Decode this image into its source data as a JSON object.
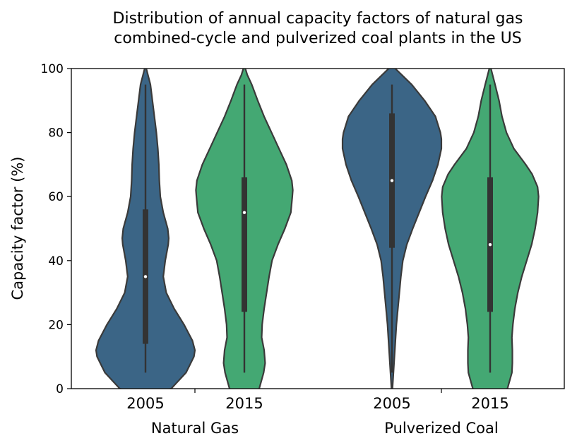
{
  "chart_data": {
    "type": "violin",
    "title_lines": [
      "Distribution of annual capacity factors of natural gas",
      "combined-cycle and pulverized coal plants in the US"
    ],
    "ylabel": "Capacity factor (%)",
    "ylim": [
      0,
      100
    ],
    "yticks": [
      "0",
      "20",
      "40",
      "60",
      "80",
      "100"
    ],
    "groups": [
      {
        "label": "Natural Gas",
        "categories": [
          "2005",
          "2015"
        ]
      },
      {
        "label": "Pulverized Coal",
        "categories": [
          "2005",
          "2015"
        ]
      }
    ],
    "colors": {
      "2005": "#3b6586",
      "2015": "#44a873"
    },
    "violins": [
      {
        "group": "Natural Gas",
        "year": "2005",
        "median": 35,
        "q1": 14,
        "q3": 56,
        "whisker_low": 5,
        "whisker_high": 95,
        "density": [
          [
            -2,
            0
          ],
          [
            0,
            0.52
          ],
          [
            5,
            0.82
          ],
          [
            10,
            0.98
          ],
          [
            12,
            1.0
          ],
          [
            15,
            0.95
          ],
          [
            20,
            0.78
          ],
          [
            25,
            0.58
          ],
          [
            30,
            0.42
          ],
          [
            35,
            0.36
          ],
          [
            40,
            0.4
          ],
          [
            45,
            0.46
          ],
          [
            47,
            0.47
          ],
          [
            50,
            0.45
          ],
          [
            55,
            0.36
          ],
          [
            60,
            0.3
          ],
          [
            65,
            0.28
          ],
          [
            70,
            0.27
          ],
          [
            75,
            0.25
          ],
          [
            80,
            0.22
          ],
          [
            85,
            0.18
          ],
          [
            90,
            0.14
          ],
          [
            95,
            0.1
          ],
          [
            98,
            0.05
          ],
          [
            101,
            0
          ]
        ]
      },
      {
        "group": "Natural Gas",
        "year": "2015",
        "median": 55,
        "q1": 24,
        "q3": 66,
        "whisker_low": 5,
        "whisker_high": 95,
        "density": [
          [
            -2,
            0
          ],
          [
            0,
            0.3
          ],
          [
            5,
            0.39
          ],
          [
            8,
            0.42
          ],
          [
            12,
            0.4
          ],
          [
            16,
            0.35
          ],
          [
            20,
            0.36
          ],
          [
            25,
            0.4
          ],
          [
            30,
            0.45
          ],
          [
            35,
            0.5
          ],
          [
            40,
            0.56
          ],
          [
            45,
            0.68
          ],
          [
            50,
            0.82
          ],
          [
            55,
            0.94
          ],
          [
            60,
            0.97
          ],
          [
            62,
            0.98
          ],
          [
            65,
            0.96
          ],
          [
            70,
            0.85
          ],
          [
            75,
            0.7
          ],
          [
            80,
            0.55
          ],
          [
            85,
            0.4
          ],
          [
            90,
            0.27
          ],
          [
            95,
            0.15
          ],
          [
            98,
            0.06
          ],
          [
            101,
            0
          ]
        ]
      },
      {
        "group": "Pulverized Coal",
        "year": "2005",
        "median": 65,
        "q1": 44,
        "q3": 86,
        "whisker_low": 5,
        "whisker_high": 95,
        "density": [
          [
            0,
            0.01
          ],
          [
            5,
            0.03
          ],
          [
            10,
            0.05
          ],
          [
            15,
            0.07
          ],
          [
            20,
            0.09
          ],
          [
            25,
            0.12
          ],
          [
            30,
            0.15
          ],
          [
            35,
            0.18
          ],
          [
            40,
            0.22
          ],
          [
            45,
            0.3
          ],
          [
            50,
            0.42
          ],
          [
            55,
            0.55
          ],
          [
            60,
            0.68
          ],
          [
            65,
            0.82
          ],
          [
            70,
            0.93
          ],
          [
            75,
            1.0
          ],
          [
            78,
            1.0
          ],
          [
            80,
            0.98
          ],
          [
            85,
            0.88
          ],
          [
            90,
            0.66
          ],
          [
            95,
            0.4
          ],
          [
            98,
            0.2
          ],
          [
            101,
            0
          ]
        ]
      },
      {
        "group": "Pulverized Coal",
        "year": "2015",
        "median": 45,
        "q1": 24,
        "q3": 66,
        "whisker_low": 5,
        "whisker_high": 95,
        "density": [
          [
            -2,
            0
          ],
          [
            0,
            0.35
          ],
          [
            5,
            0.44
          ],
          [
            8,
            0.45
          ],
          [
            12,
            0.45
          ],
          [
            16,
            0.44
          ],
          [
            20,
            0.46
          ],
          [
            25,
            0.5
          ],
          [
            30,
            0.56
          ],
          [
            35,
            0.64
          ],
          [
            40,
            0.74
          ],
          [
            45,
            0.84
          ],
          [
            50,
            0.91
          ],
          [
            55,
            0.96
          ],
          [
            60,
            0.98
          ],
          [
            63,
            0.96
          ],
          [
            67,
            0.85
          ],
          [
            70,
            0.72
          ],
          [
            75,
            0.48
          ],
          [
            80,
            0.33
          ],
          [
            85,
            0.24
          ],
          [
            90,
            0.18
          ],
          [
            95,
            0.1
          ],
          [
            98,
            0.05
          ],
          [
            101,
            0
          ]
        ]
      }
    ]
  }
}
